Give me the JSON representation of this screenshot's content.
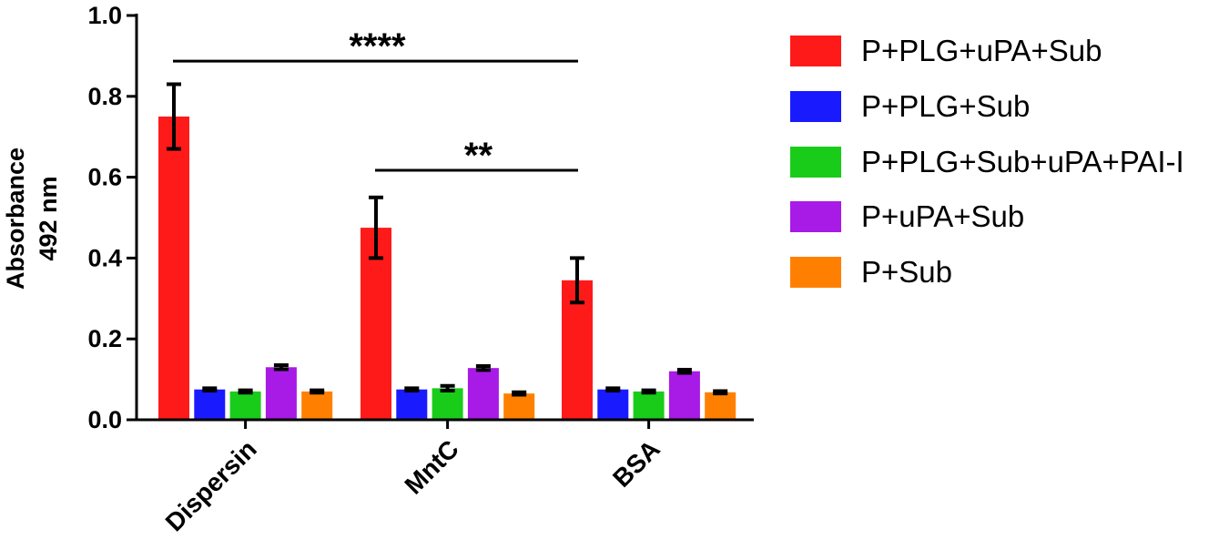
{
  "chart_data": {
    "type": "bar",
    "ylabel_line1": "Absorbance",
    "ylabel_line2": "492 nm",
    "xlabel": "",
    "ylim": [
      0,
      1.0
    ],
    "yticks": [
      "0.0",
      "0.2",
      "0.4",
      "0.6",
      "0.8",
      "1.0"
    ],
    "categories": [
      "Dispersin",
      "MntC",
      "BSA"
    ],
    "series": [
      {
        "name": "P+PLG+uPA+Sub",
        "color": "#ff1a1a",
        "values": [
          0.75,
          0.475,
          0.345
        ],
        "errors": [
          0.08,
          0.075,
          0.055
        ]
      },
      {
        "name": "P+PLG+Sub",
        "color": "#1a1aff",
        "values": [
          0.075,
          0.075,
          0.075
        ],
        "errors": [
          0.003,
          0.003,
          0.003
        ]
      },
      {
        "name": "P+PLG+Sub+uPA+PAI-I",
        "color": "#1acc1a",
        "values": [
          0.07,
          0.078,
          0.07
        ],
        "errors": [
          0.003,
          0.006,
          0.003
        ]
      },
      {
        "name": "P+uPA+Sub",
        "color": "#a81ae6",
        "values": [
          0.13,
          0.128,
          0.12
        ],
        "errors": [
          0.005,
          0.005,
          0.004
        ]
      },
      {
        "name": "P+Sub",
        "color": "#ff8000",
        "values": [
          0.07,
          0.065,
          0.068
        ],
        "errors": [
          0.003,
          0.003,
          0.003
        ]
      }
    ],
    "significance": [
      {
        "label": "****",
        "from_category": "Dispersin",
        "to_category": "BSA",
        "y": 0.887
      },
      {
        "label": "**",
        "from_category": "MntC",
        "to_category": "BSA",
        "y": 0.617
      }
    ],
    "legend_position": "right",
    "grid": false
  }
}
